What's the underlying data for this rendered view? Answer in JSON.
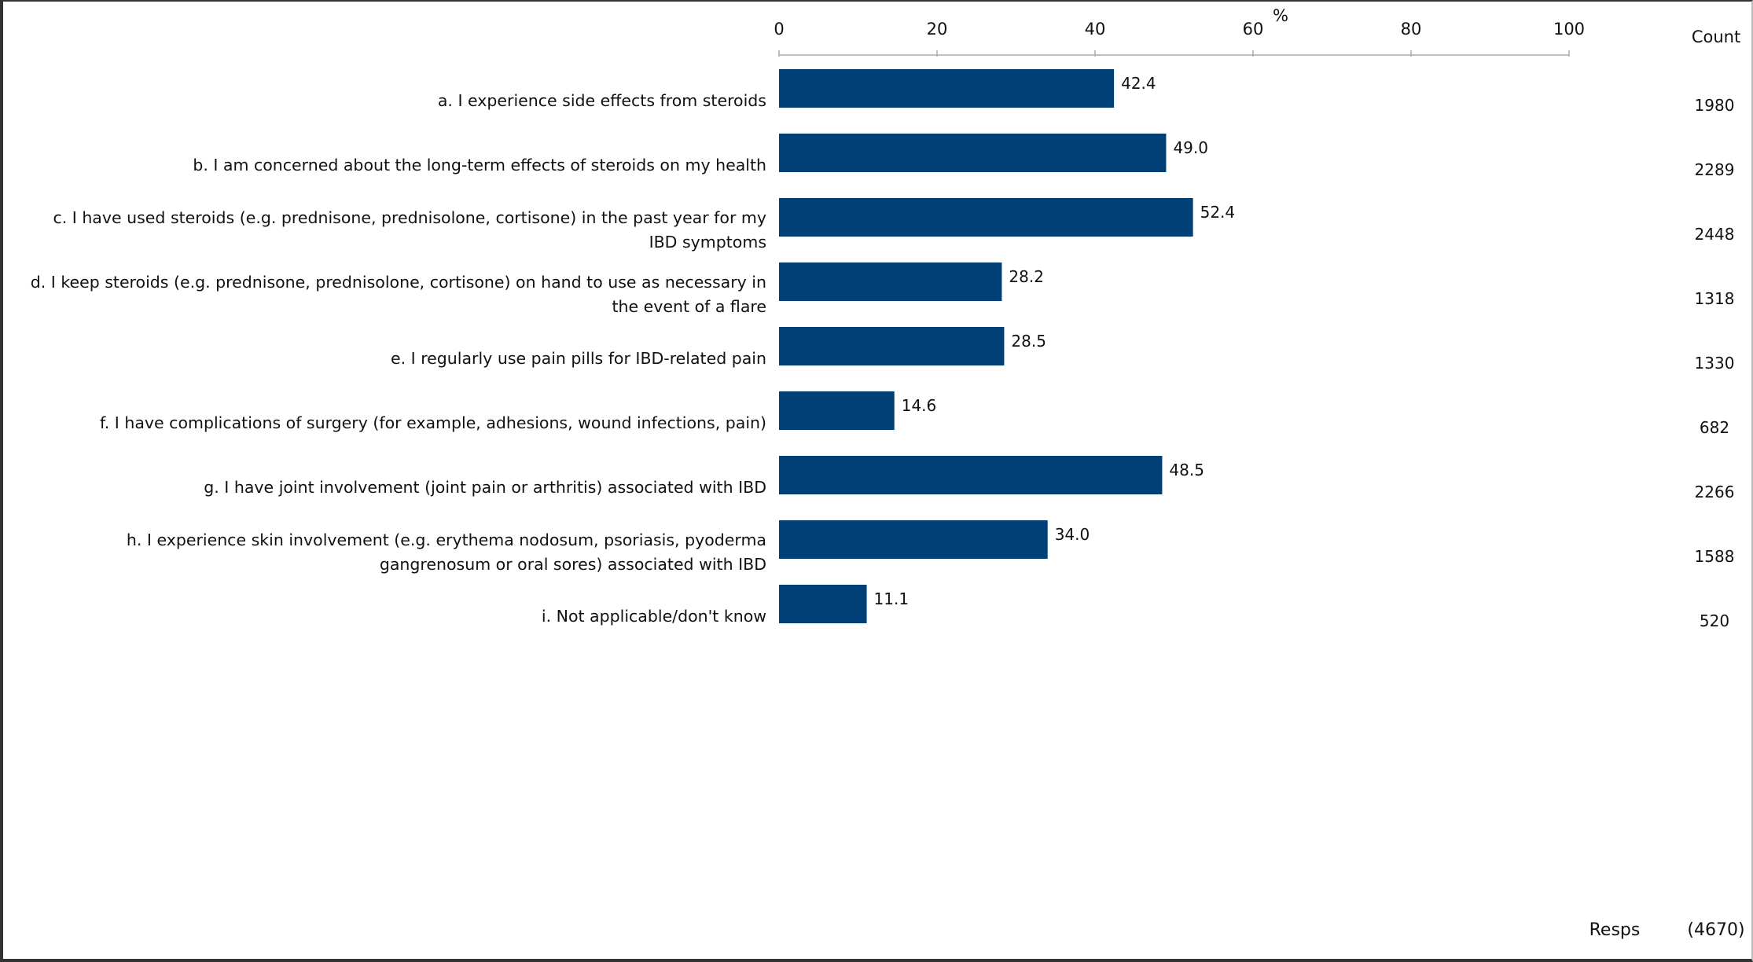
{
  "chart_data": {
    "type": "bar",
    "orientation": "horizontal",
    "axis_unit_label": "%",
    "xlim": [
      0,
      100
    ],
    "xticks": [
      0,
      20,
      40,
      60,
      80,
      100
    ],
    "bar_color": "#004077",
    "categories": [
      [
        "a. I experience side effects from steroids"
      ],
      [
        "b. I am concerned about the long-term effects of steroids on my health"
      ],
      [
        "c. I have used steroids (e.g. prednisone, prednisolone, cortisone) in the past year for my",
        "IBD symptoms"
      ],
      [
        "d. I keep steroids (e.g. prednisone, prednisolone, cortisone) on hand to use as necessary in",
        "the event of a flare"
      ],
      [
        "e. I regularly use pain pills for IBD-related pain"
      ],
      [
        "f. I have complications of surgery (for example, adhesions, wound infections, pain)"
      ],
      [
        "g. I have joint involvement (joint pain or arthritis) associated with IBD"
      ],
      [
        "h. I experience skin involvement (e.g. erythema nodosum, psoriasis, pyoderma",
        "gangrenosum or oral sores) associated with IBD"
      ],
      [
        "i. Not applicable/don't know"
      ]
    ],
    "values": [
      42.4,
      49.0,
      52.4,
      28.2,
      28.5,
      14.6,
      48.5,
      34.0,
      11.1
    ],
    "value_labels": [
      "42.4",
      "49.0",
      "52.4",
      "28.2",
      "28.5",
      "14.6",
      "48.5",
      "34.0",
      "11.1"
    ],
    "count_header": "Count",
    "counts": [
      "1980",
      "2289",
      "2448",
      "1318",
      "1330",
      "682",
      "2266",
      "1588",
      "520"
    ],
    "resps_label": "Resps",
    "resps_value": "(4670)"
  }
}
